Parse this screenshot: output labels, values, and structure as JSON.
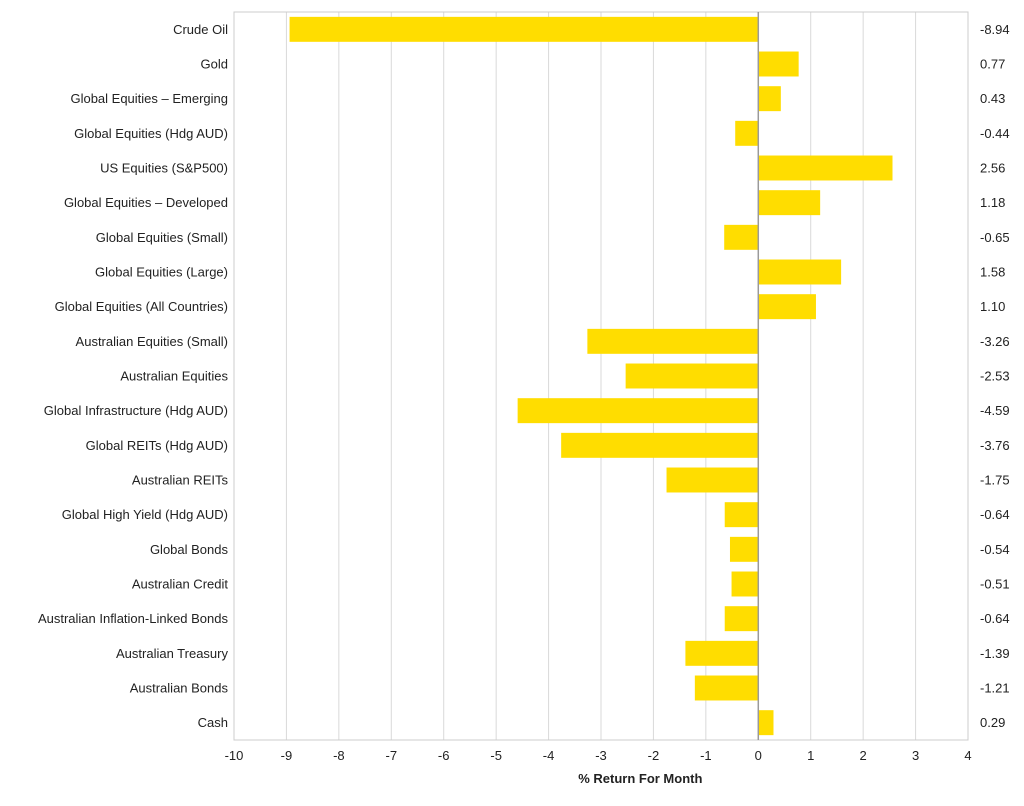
{
  "chart_data": {
    "type": "bar",
    "orientation": "horizontal",
    "title": "",
    "xlabel": "% Return For Month",
    "ylabel": "",
    "xlim": [
      -10,
      4
    ],
    "xticks": [
      -10,
      -9,
      -8,
      -7,
      -6,
      -5,
      -4,
      -3,
      -2,
      -1,
      0,
      1,
      2,
      3,
      4
    ],
    "grid": true,
    "bar_color": "#FFDD00",
    "gridline_color": "#D9D9D9",
    "zero_line_color": "#9A9A9A",
    "categories": [
      "Crude Oil",
      "Gold",
      "Global Equities – Emerging",
      "Global Equities (Hdg AUD)",
      "US Equities (S&P500)",
      "Global Equities – Developed",
      "Global Equities (Small)",
      "Global Equities (Large)",
      "Global Equities (All Countries)",
      "Australian Equities (Small)",
      "Australian Equities",
      "Global Infrastructure (Hdg AUD)",
      "Global REITs (Hdg AUD)",
      "Australian REITs",
      "Global High Yield (Hdg AUD)",
      "Global Bonds",
      "Australian Credit",
      "Australian Inflation-Linked Bonds",
      "Australian Treasury",
      "Australian Bonds",
      "Cash"
    ],
    "values": [
      -8.94,
      0.77,
      0.43,
      -0.44,
      2.56,
      1.18,
      -0.65,
      1.58,
      1.1,
      -3.26,
      -2.53,
      -4.59,
      -3.76,
      -1.75,
      -0.64,
      -0.54,
      -0.51,
      -0.64,
      -1.39,
      -1.21,
      0.29
    ],
    "value_labels": [
      "-8.94",
      "0.77",
      "0.43",
      "-0.44",
      "2.56",
      "1.18",
      "-0.65",
      "1.58",
      "1.10",
      "-3.26",
      "-2.53",
      "-4.59",
      "-3.76",
      "-1.75",
      "-0.64",
      "-0.54",
      "-0.51",
      "-0.64",
      "-1.39",
      "-1.21",
      "0.29"
    ]
  }
}
